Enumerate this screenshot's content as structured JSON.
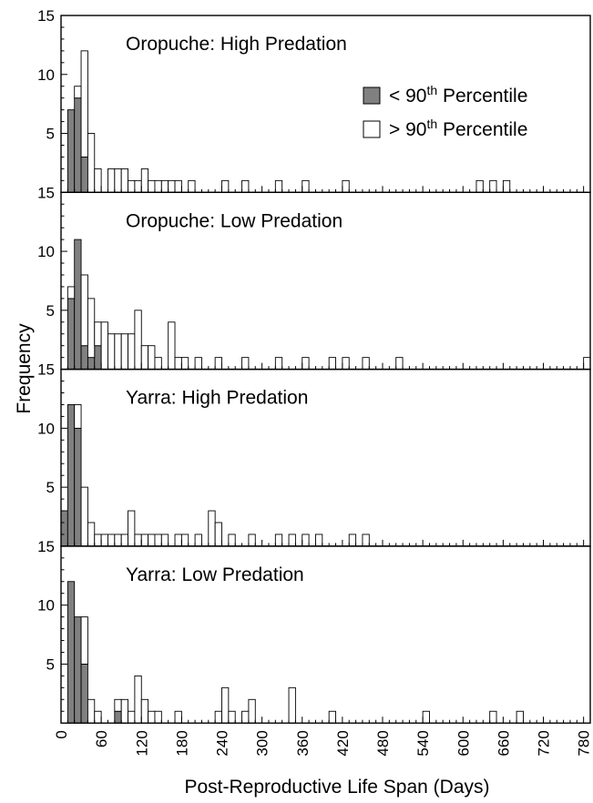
{
  "chart_data": {
    "type": "bar",
    "ylabel": "Frequency",
    "xlabel": "Post-Reproductive Life Span (Days)",
    "bin_width": 10,
    "xlim": [
      0,
      790
    ],
    "ylim": [
      0,
      15
    ],
    "x_ticks": [
      0,
      60,
      120,
      180,
      240,
      300,
      360,
      420,
      480,
      540,
      600,
      660,
      720,
      780
    ],
    "y_tick_labels": [
      "5",
      "10",
      "15"
    ],
    "legend": {
      "placement": "top-right of first panel",
      "entries": [
        {
          "name": "< 90",
          "sup": "th",
          "suffix": " Percentile",
          "color": "#808080"
        },
        {
          "name": "> 90",
          "sup": "th",
          "suffix": " Percentile",
          "color": "#ffffff"
        }
      ]
    },
    "panels": [
      {
        "title": "Oropuche: High Predation",
        "below_bins": [
          [
            10,
            7
          ],
          [
            20,
            8
          ],
          [
            30,
            3
          ]
        ],
        "above_bins": [
          [
            20,
            1
          ],
          [
            30,
            9
          ],
          [
            40,
            5
          ],
          [
            50,
            2
          ],
          [
            70,
            2
          ],
          [
            80,
            2
          ],
          [
            90,
            2
          ],
          [
            100,
            1
          ],
          [
            110,
            1
          ],
          [
            120,
            2
          ],
          [
            130,
            1
          ],
          [
            140,
            1
          ],
          [
            150,
            1
          ],
          [
            160,
            1
          ],
          [
            170,
            1
          ],
          [
            190,
            1
          ],
          [
            240,
            1
          ],
          [
            270,
            1
          ],
          [
            320,
            1
          ],
          [
            360,
            1
          ],
          [
            420,
            1
          ],
          [
            620,
            1
          ],
          [
            640,
            1
          ],
          [
            660,
            1
          ]
        ]
      },
      {
        "title": "Oropuche: Low Predation",
        "below_bins": [
          [
            10,
            6
          ],
          [
            20,
            11
          ],
          [
            30,
            2
          ],
          [
            40,
            1
          ],
          [
            50,
            2
          ]
        ],
        "above_bins": [
          [
            10,
            1
          ],
          [
            30,
            6
          ],
          [
            40,
            5
          ],
          [
            50,
            2
          ],
          [
            60,
            4
          ],
          [
            70,
            3
          ],
          [
            80,
            3
          ],
          [
            90,
            3
          ],
          [
            100,
            3
          ],
          [
            110,
            5
          ],
          [
            120,
            2
          ],
          [
            130,
            2
          ],
          [
            140,
            1
          ],
          [
            160,
            4
          ],
          [
            170,
            1
          ],
          [
            180,
            1
          ],
          [
            200,
            1
          ],
          [
            230,
            1
          ],
          [
            270,
            1
          ],
          [
            320,
            1
          ],
          [
            360,
            1
          ],
          [
            400,
            1
          ],
          [
            420,
            1
          ],
          [
            450,
            1
          ],
          [
            500,
            1
          ],
          [
            780,
            1
          ]
        ]
      },
      {
        "title": "Yarra: High Predation",
        "below_bins": [
          [
            0,
            3
          ],
          [
            10,
            12
          ],
          [
            20,
            10
          ]
        ],
        "above_bins": [
          [
            20,
            2
          ],
          [
            30,
            5
          ],
          [
            40,
            2
          ],
          [
            50,
            1
          ],
          [
            60,
            1
          ],
          [
            70,
            1
          ],
          [
            80,
            1
          ],
          [
            90,
            1
          ],
          [
            100,
            3
          ],
          [
            110,
            1
          ],
          [
            120,
            1
          ],
          [
            130,
            1
          ],
          [
            140,
            1
          ],
          [
            150,
            1
          ],
          [
            170,
            1
          ],
          [
            180,
            1
          ],
          [
            200,
            1
          ],
          [
            220,
            3
          ],
          [
            230,
            2
          ],
          [
            250,
            1
          ],
          [
            280,
            1
          ],
          [
            320,
            1
          ],
          [
            340,
            1
          ],
          [
            360,
            1
          ],
          [
            380,
            1
          ],
          [
            430,
            1
          ],
          [
            450,
            1
          ]
        ]
      },
      {
        "title": "Yarra: Low Predation",
        "below_bins": [
          [
            10,
            12
          ],
          [
            20,
            9
          ],
          [
            30,
            5
          ],
          [
            80,
            1
          ]
        ],
        "above_bins": [
          [
            30,
            4
          ],
          [
            40,
            2
          ],
          [
            50,
            1
          ],
          [
            80,
            1
          ],
          [
            90,
            2
          ],
          [
            100,
            1
          ],
          [
            110,
            4
          ],
          [
            120,
            2
          ],
          [
            130,
            1
          ],
          [
            140,
            1
          ],
          [
            170,
            1
          ],
          [
            230,
            1
          ],
          [
            240,
            3
          ],
          [
            250,
            1
          ],
          [
            270,
            1
          ],
          [
            280,
            2
          ],
          [
            340,
            3
          ],
          [
            400,
            1
          ],
          [
            540,
            1
          ],
          [
            640,
            1
          ],
          [
            680,
            1
          ]
        ]
      }
    ]
  }
}
